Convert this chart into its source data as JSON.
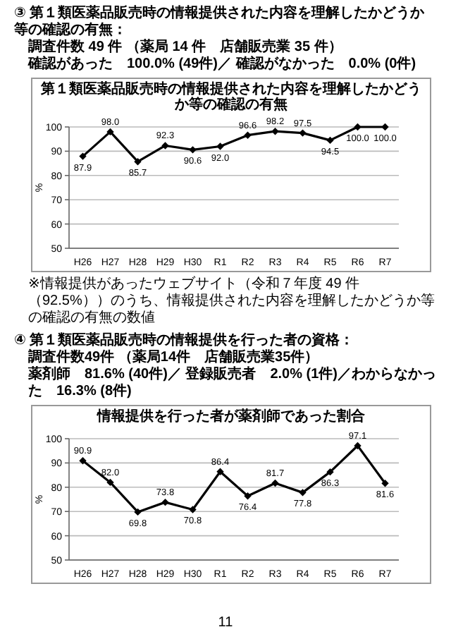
{
  "chart_data": [
    {
      "type": "line",
      "title": "第１類医薬品販売時の情報提供された内容を理解したかどうか等の確認の有無",
      "ylabel": "%",
      "categories": [
        "H26",
        "H27",
        "H28",
        "H29",
        "H30",
        "R1",
        "R2",
        "R3",
        "R4",
        "R5",
        "R6",
        "R7"
      ],
      "series": [
        {
          "color": "#000000",
          "values": [
            87.9,
            98.0,
            85.7,
            92.3,
            90.6,
            92.0,
            96.6,
            98.2,
            97.5,
            94.5,
            100.0,
            100.0
          ],
          "value_labels": [
            "87.9",
            "98.0",
            "85.7",
            "92.3",
            "90.6",
            "92.0",
            "96.6",
            "98.2",
            "97.5",
            "94.5",
            "100.0",
            "100.0"
          ]
        }
      ],
      "ylim": [
        50,
        100
      ],
      "yticks": [
        50,
        60,
        70,
        80,
        90,
        100
      ],
      "grid": "y",
      "marker": "diamond",
      "line_style": "solid",
      "annotations": [
        "③ 第１類医薬品販売時の情報提供された内容を理解したかどうか等の確認の有無：",
        "調査件数 49 件 （薬局 14 件　店舗販売業 35 件）",
        "確認があった　100.0% (49件)／ 確認がなかった　0.0% (0件)",
        "※情報提供があったウェブサイト（令和７年度 49 件（92.5%））のうち、情報提供された内容を理解したかどうか等の確認の有無の数値"
      ]
    },
    {
      "type": "line",
      "title": "情報提供を行った者が薬剤師であった割合",
      "ylabel": "%",
      "categories": [
        "H26",
        "H27",
        "H28",
        "H29",
        "H30",
        "R1",
        "R2",
        "R3",
        "R4",
        "R5",
        "R6",
        "R7"
      ],
      "series": [
        {
          "color": "#000000",
          "values": [
            90.9,
            82.0,
            69.8,
            73.8,
            70.8,
            86.4,
            76.4,
            81.7,
            77.8,
            86.3,
            97.1,
            81.6
          ],
          "value_labels": [
            "90.9",
            "82.0",
            "69.8",
            "73.8",
            "70.8",
            "86.4",
            "76.4",
            "81.7",
            "77.8",
            "86.3",
            "97.1",
            "81.6"
          ]
        }
      ],
      "ylim": [
        50,
        100
      ],
      "yticks": [
        50,
        60,
        70,
        80,
        90,
        100
      ],
      "grid": "y",
      "marker": "diamond",
      "line_style": "solid",
      "annotations": [
        "④ 第１類医薬品販売時の情報提供を行った者の資格：",
        "調査件数49件 （薬局14件　店舗販売業35件）",
        "薬剤師　81.6% (40件)／ 登録販売者　2.0% (1件)／わからなかった　16.3% (8件)",
        "11"
      ]
    }
  ]
}
